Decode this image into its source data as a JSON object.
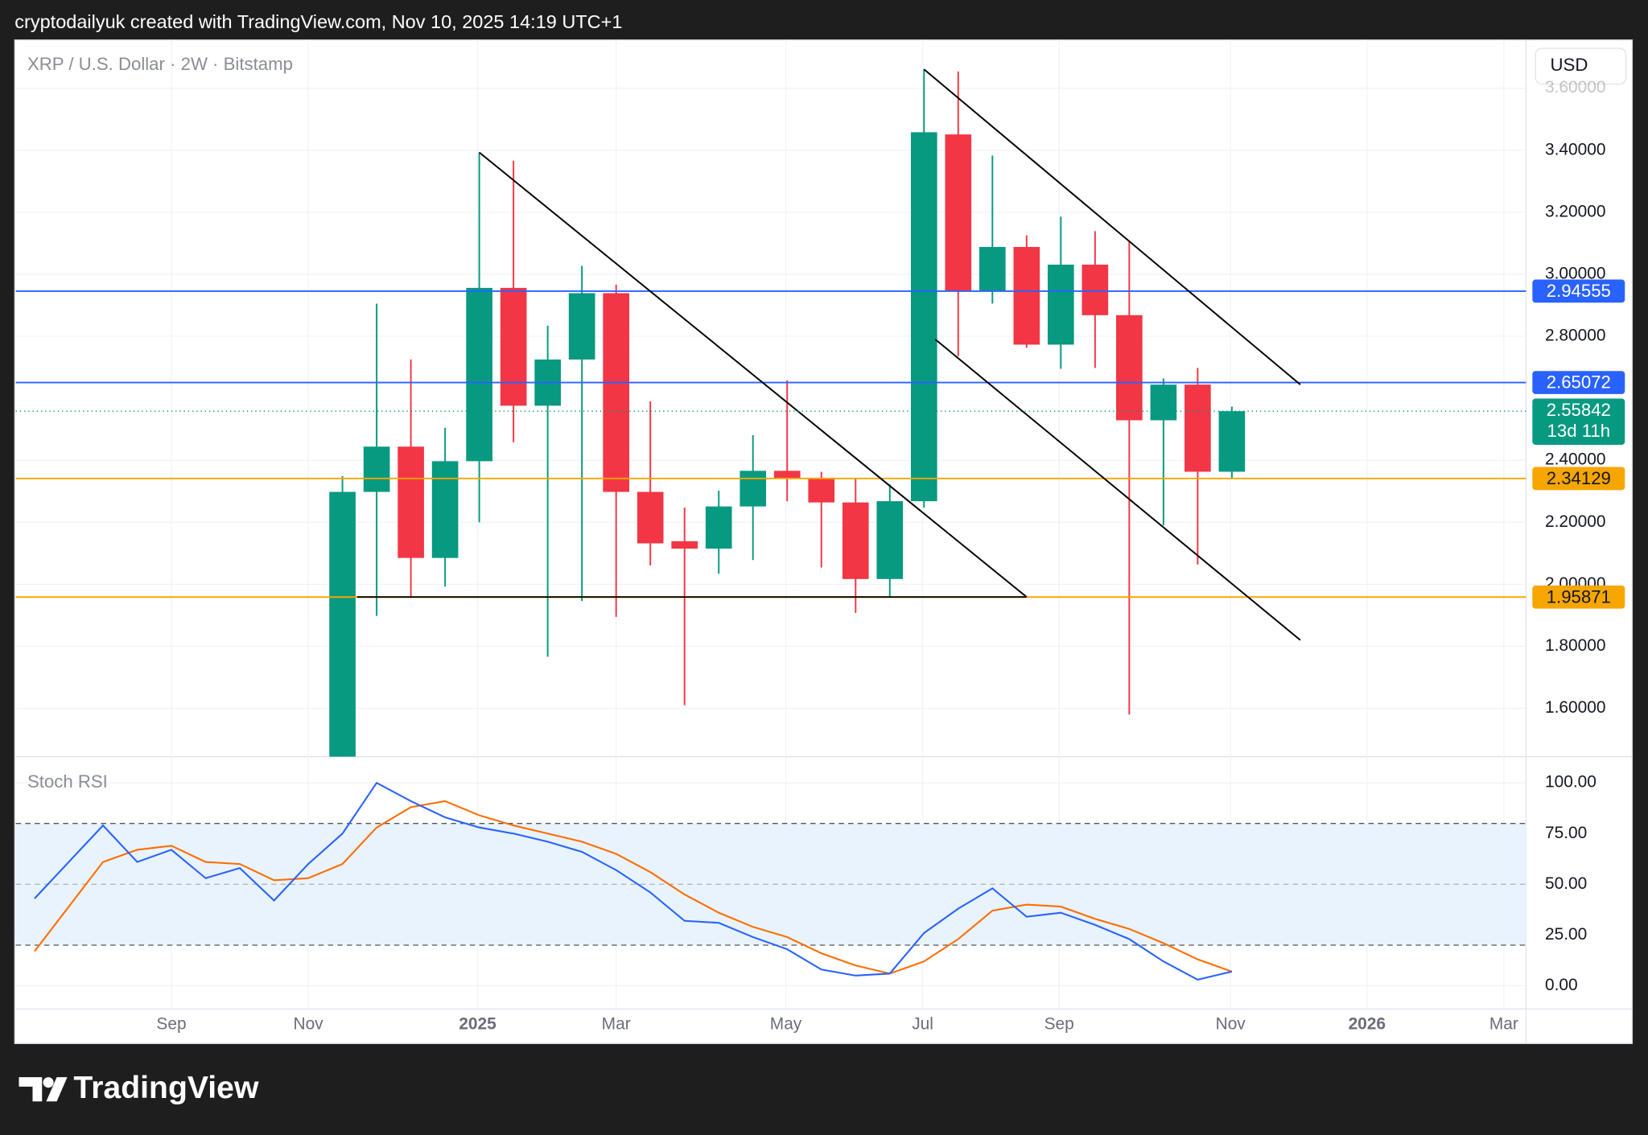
{
  "header": {
    "text": "cryptodailyuk created with TradingView.com, Nov 10, 2025 14:19 UTC+1"
  },
  "footer": {
    "brand": "TradingView"
  },
  "chart_data": [
    {
      "type": "candlestick",
      "title": "XRP / U.S. Dollar · 2W · Bitstamp",
      "currency": "USD",
      "up_color": "#089981",
      "down_color": "#f23645",
      "open": [
        1.444,
        2.298,
        2.444,
        2.085,
        2.397,
        2.956,
        2.576,
        2.725,
        2.939,
        2.298,
        2.139,
        2.115,
        2.251,
        2.366,
        2.342,
        2.264,
        2.017,
        2.268,
        3.451,
        2.946,
        3.088,
        2.773,
        3.031,
        2.868,
        2.529,
        2.644,
        2.363
      ],
      "high": [
        2.349,
        2.905,
        2.725,
        2.505,
        3.393,
        3.366,
        2.834,
        3.027,
        2.966,
        2.59,
        2.247,
        2.302,
        2.481,
        2.658,
        2.363,
        2.342,
        2.322,
        3.661,
        3.654,
        3.383,
        3.125,
        3.186,
        3.139,
        3.105,
        2.664,
        2.698,
        2.573
      ],
      "low": [
        1.444,
        1.898,
        1.959,
        1.993,
        2.2,
        2.458,
        1.766,
        1.946,
        1.895,
        2.061,
        1.61,
        2.034,
        2.078,
        2.268,
        2.054,
        1.908,
        1.959,
        2.247,
        2.736,
        2.905,
        2.763,
        2.695,
        2.698,
        1.58,
        2.19,
        2.064,
        2.342
      ],
      "close": [
        2.298,
        2.444,
        2.085,
        2.397,
        2.956,
        2.576,
        2.725,
        2.939,
        2.298,
        2.132,
        2.115,
        2.251,
        2.366,
        2.342,
        2.264,
        2.017,
        2.268,
        3.458,
        2.946,
        3.088,
        2.773,
        3.031,
        2.868,
        2.529,
        2.644,
        2.363,
        2.55842
      ],
      "countdown": "13d 11h",
      "xlim": [
        -9.55,
        34.6
      ],
      "ylim": [
        1.444,
        3.749
      ],
      "yticks": [
        {
          "value": 1.6,
          "label": "1.60000"
        },
        {
          "value": 1.8,
          "label": "1.80000"
        },
        {
          "value": 2.0,
          "label": "2.00000"
        },
        {
          "value": 2.2,
          "label": "2.20000"
        },
        {
          "value": 2.4,
          "label": "2.40000"
        },
        {
          "value": 2.8,
          "label": "2.80000"
        },
        {
          "value": 3.0,
          "label": "3.00000"
        },
        {
          "value": 3.2,
          "label": "3.20000"
        },
        {
          "value": 3.4,
          "label": "3.40000"
        },
        {
          "value": 3.6,
          "label": "3.60000"
        }
      ],
      "grid": true,
      "levels": [
        {
          "value": 2.94555,
          "color": "#2962ff"
        },
        {
          "value": 2.65072,
          "color": "#2962ff"
        },
        {
          "value": 2.34129,
          "color": "#f7a600"
        },
        {
          "value": 1.95871,
          "color": "#f7a600"
        }
      ],
      "trendlines": [
        {
          "x": [
            4,
            20
          ],
          "y": [
            3.393,
            1.959
          ]
        },
        {
          "x": [
            0.43,
            20
          ],
          "y": [
            1.959,
            1.959
          ]
        },
        {
          "x": [
            17,
            28
          ],
          "y": [
            3.661,
            2.644
          ]
        },
        {
          "x": [
            17.33,
            28
          ],
          "y": [
            2.79,
            1.82
          ]
        }
      ]
    },
    {
      "type": "line",
      "title": "Stoch RSI",
      "x": [
        -9,
        -8,
        -7,
        -6,
        -5,
        -4,
        -3,
        -2,
        -1,
        0,
        1,
        2,
        3,
        4,
        5,
        6,
        7,
        8,
        9,
        10,
        11,
        12,
        13,
        14,
        15,
        16,
        17,
        18,
        19,
        20,
        21,
        22,
        23,
        24,
        25,
        26
      ],
      "series": [
        {
          "color": "#2962ff",
          "values": [
            43,
            61,
            79,
            61,
            67,
            53,
            58,
            42,
            60,
            75,
            100,
            91,
            83,
            78,
            75,
            71,
            66,
            57,
            46,
            32,
            31,
            24,
            18,
            8,
            5,
            6,
            26,
            38,
            48,
            34,
            36,
            30,
            23,
            12,
            3,
            7
          ]
        },
        {
          "color": "#ff6d00",
          "values": [
            17,
            39,
            61,
            67,
            69,
            61,
            60,
            52,
            53,
            60,
            78,
            88,
            91,
            84,
            79,
            75,
            71,
            65,
            56,
            45,
            36,
            29,
            24,
            16,
            10,
            6,
            12,
            23,
            37,
            40,
            39,
            33,
            28,
            21,
            13,
            7
          ]
        }
      ],
      "band": [
        20,
        80
      ],
      "midline": 50,
      "xlim": [
        -9.55,
        34.6
      ],
      "xticks": [
        {
          "value": -5.0,
          "label": "Sep"
        },
        {
          "value": -1.0,
          "label": "Nov"
        },
        {
          "value": 3.95,
          "label": "2025"
        },
        {
          "value": 8.0,
          "label": "Mar"
        },
        {
          "value": 12.96,
          "label": "May"
        },
        {
          "value": 16.96,
          "label": "Jul"
        },
        {
          "value": 20.95,
          "label": "Sep"
        },
        {
          "value": 25.96,
          "label": "Nov"
        },
        {
          "value": 29.95,
          "label": "2026"
        },
        {
          "value": 33.95,
          "label": "Mar"
        }
      ],
      "ylim": [
        -11.4,
        112.9
      ],
      "yticks": [
        {
          "value": 0,
          "label": "0.00"
        },
        {
          "value": 25,
          "label": "25.00"
        },
        {
          "value": 50,
          "label": "50.00"
        },
        {
          "value": 75,
          "label": "75.00"
        },
        {
          "value": 100,
          "label": "100.00"
        }
      ],
      "grid": true
    }
  ]
}
